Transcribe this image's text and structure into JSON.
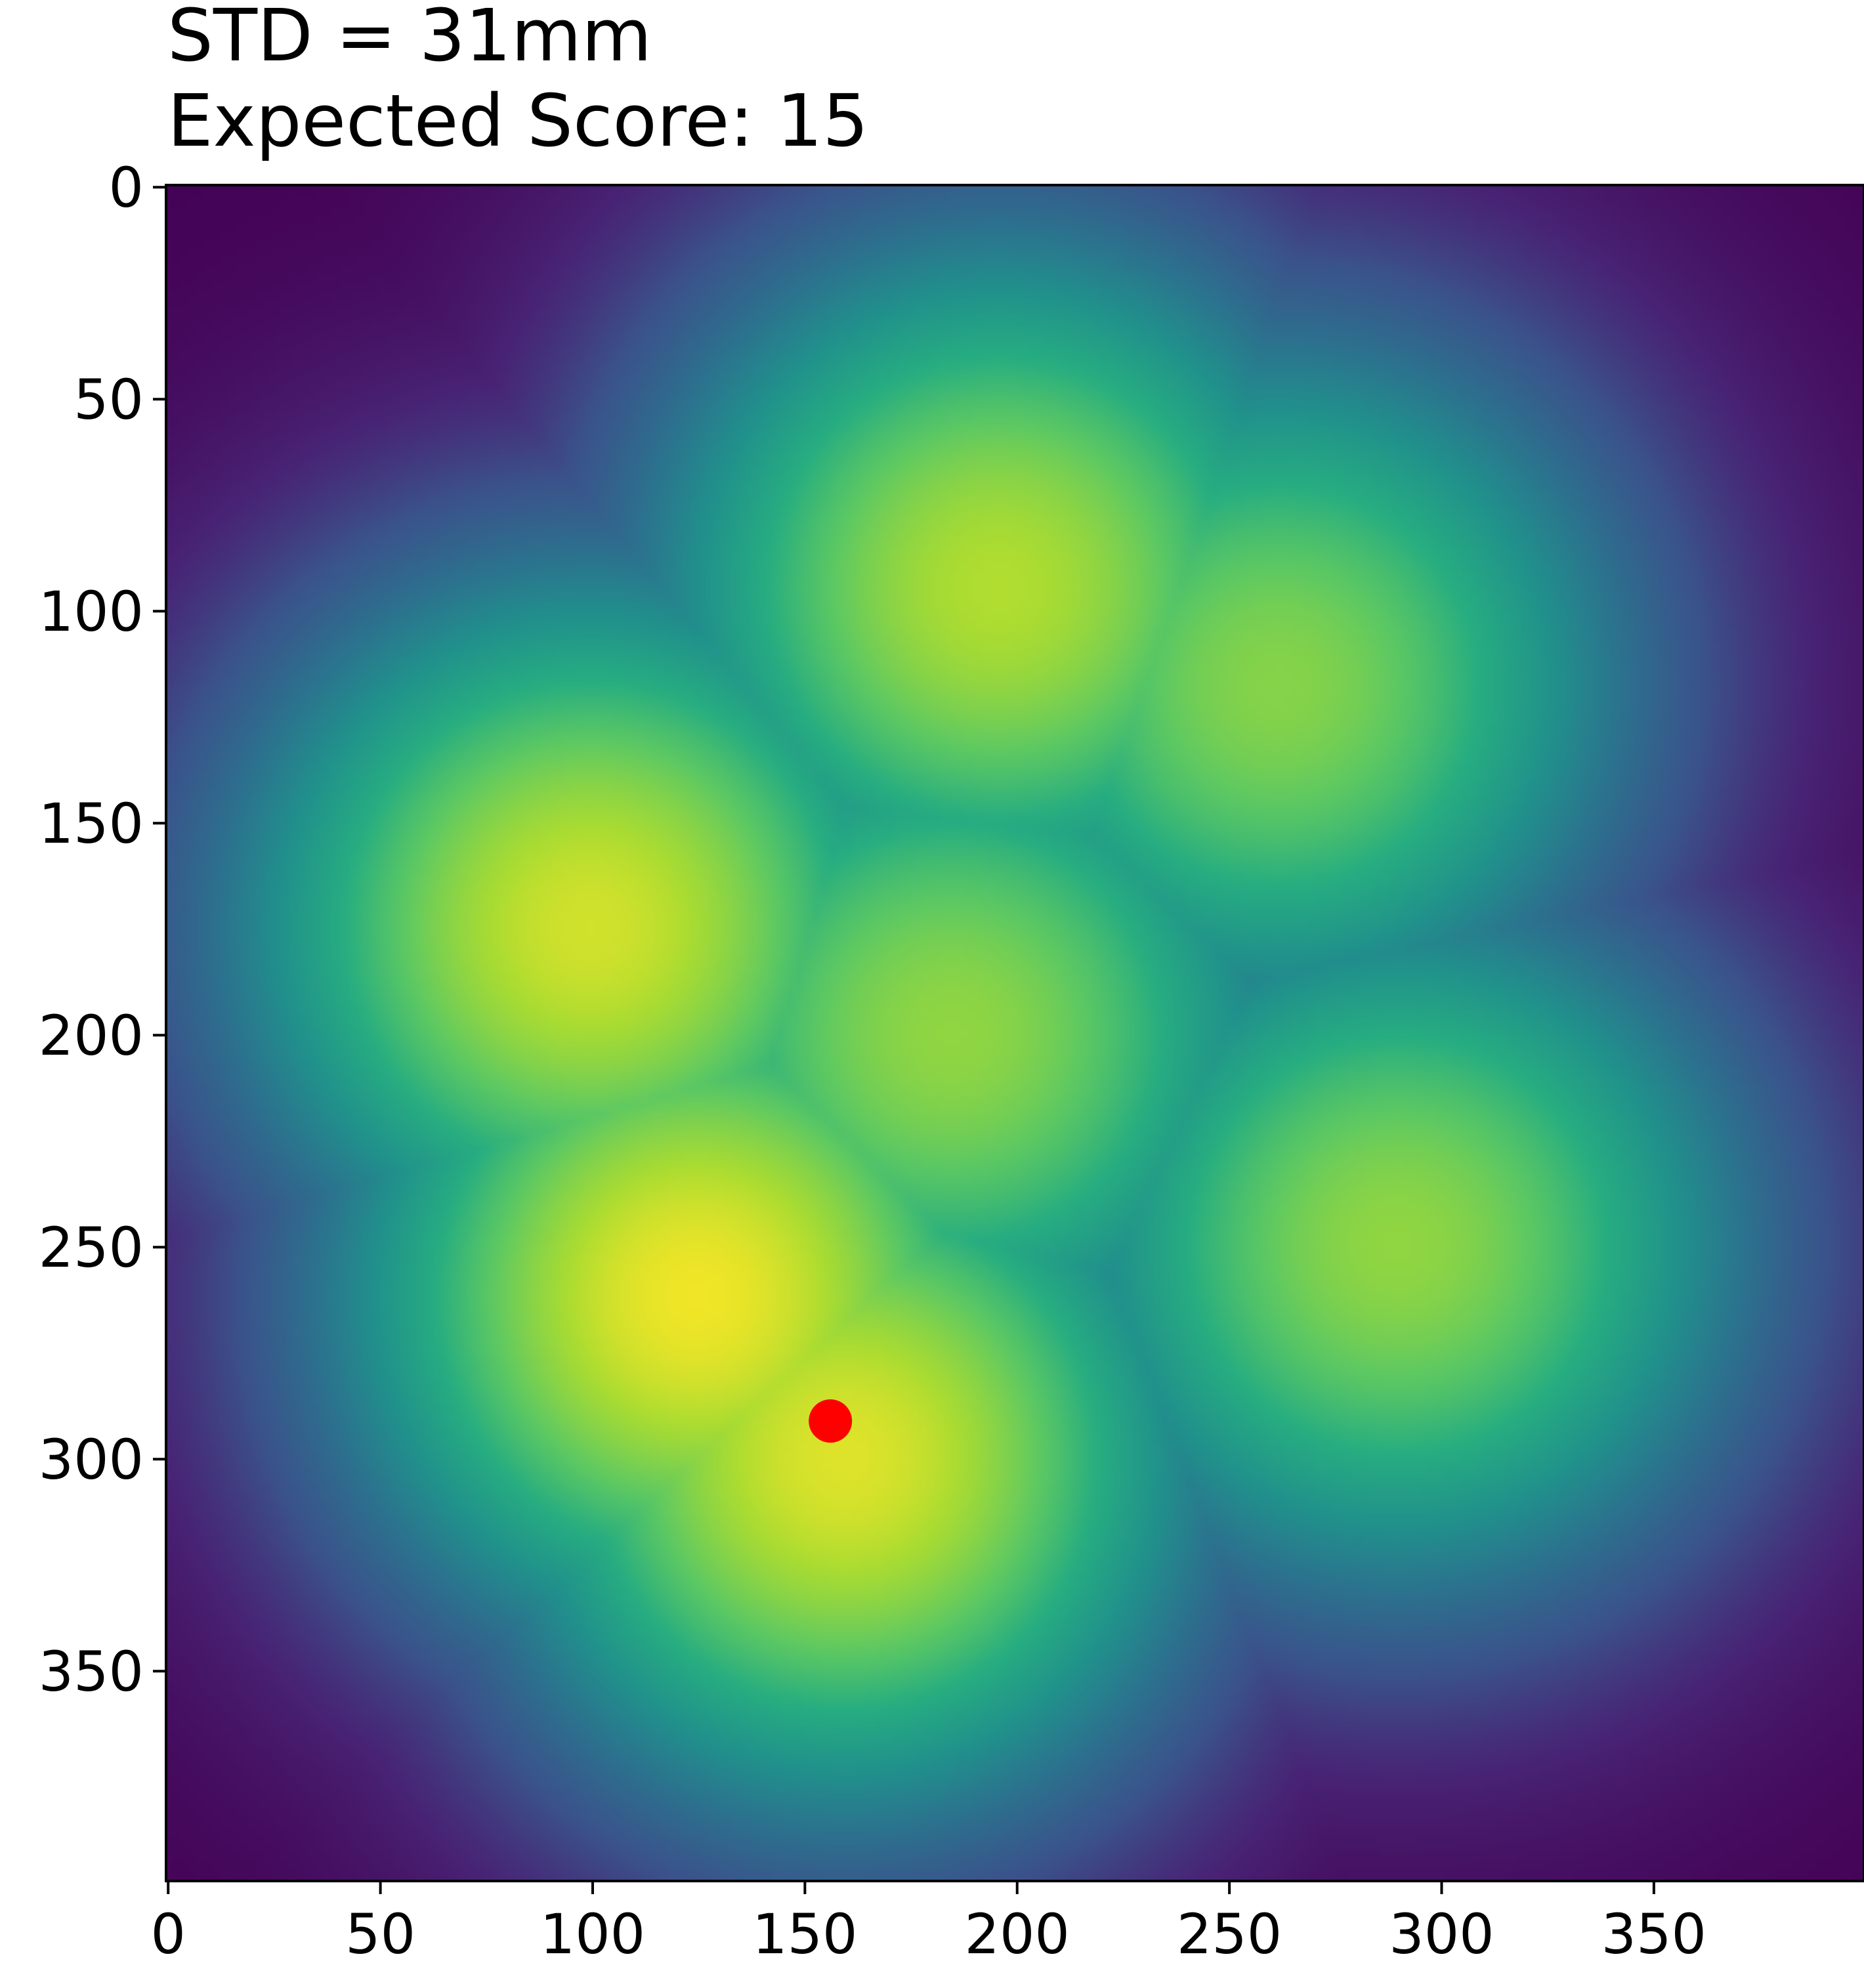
{
  "chart_data": {
    "type": "heatmap",
    "title_lines": [
      "STD = 31mm",
      "Expected Score: 15"
    ],
    "xlabel": "",
    "ylabel": "",
    "xlim": [
      0,
      399
    ],
    "ylim": [
      399,
      0
    ],
    "y_inverted": true,
    "grid": false,
    "colormap": "viridis",
    "x_ticks": [
      0,
      50,
      100,
      150,
      200,
      250,
      300,
      350
    ],
    "y_ticks": [
      0,
      50,
      100,
      150,
      200,
      250,
      300,
      350
    ],
    "x_tick_labels": [
      "0",
      "50",
      "100",
      "150",
      "200",
      "250",
      "300",
      "350"
    ],
    "y_tick_labels": [
      "0",
      "50",
      "100",
      "150",
      "200",
      "250",
      "300",
      "350"
    ],
    "heat_peaks": [
      {
        "x": 196,
        "y": 95,
        "value": 0.88
      },
      {
        "x": 100,
        "y": 175,
        "value": 0.93
      },
      {
        "x": 262,
        "y": 118,
        "value": 0.8
      },
      {
        "x": 185,
        "y": 200,
        "value": 0.82
      },
      {
        "x": 290,
        "y": 250,
        "value": 0.82
      },
      {
        "x": 125,
        "y": 262,
        "value": 0.98
      },
      {
        "x": 160,
        "y": 300,
        "value": 0.95
      }
    ],
    "marker": {
      "x": 156,
      "y": 291,
      "color": "#ff0000"
    }
  }
}
